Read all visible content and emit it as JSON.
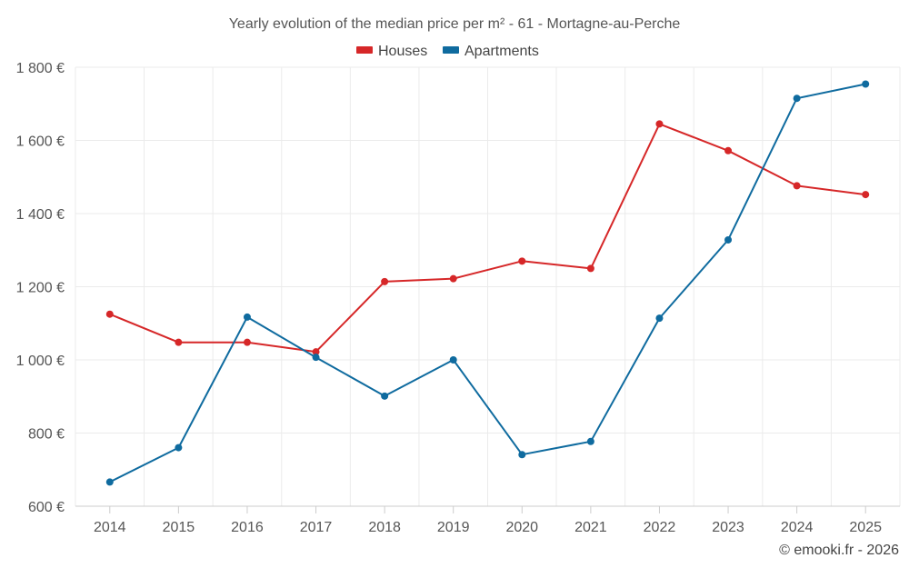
{
  "chart_data": {
    "type": "line",
    "title": "Yearly evolution of the median price per m² - 61 - Mortagne-au-Perche",
    "xlabel": "",
    "ylabel": "",
    "categories": [
      "2014",
      "2015",
      "2016",
      "2017",
      "2018",
      "2019",
      "2020",
      "2021",
      "2022",
      "2023",
      "2024",
      "2025"
    ],
    "ylim": [
      600,
      1800
    ],
    "yticks": [
      600,
      800,
      1000,
      1200,
      1400,
      1600,
      1800
    ],
    "ytick_labels": [
      "600 €",
      "800 €",
      "1 000 €",
      "1 200 €",
      "1 400 €",
      "1 600 €",
      "1 800 €"
    ],
    "grid": true,
    "legend_position": "top-center",
    "series": [
      {
        "name": "Houses",
        "color": "#d62728",
        "values": [
          1125,
          1048,
          1048,
          1022,
          1214,
          1222,
          1270,
          1250,
          1645,
          1572,
          1476,
          1452
        ]
      },
      {
        "name": "Apartments",
        "color": "#0f6b9f",
        "values": [
          666,
          760,
          1117,
          1007,
          901,
          1000,
          741,
          777,
          1114,
          1328,
          1715,
          1754
        ]
      }
    ]
  },
  "credit": "© emooki.fr - 2026"
}
